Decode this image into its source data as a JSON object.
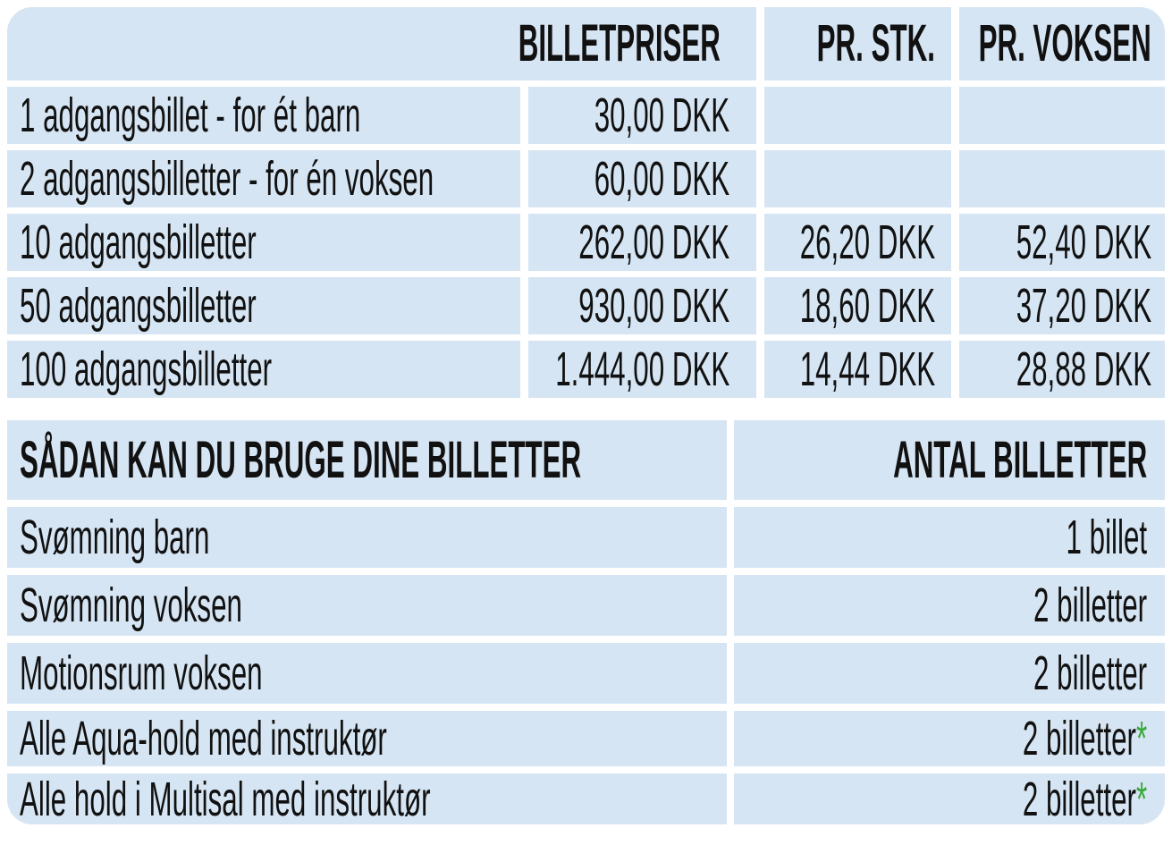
{
  "colors": {
    "cell_background": "#d6e5f3",
    "text": "#111111",
    "asterisk_green": "#3aa93c",
    "page_background": "#ffffff"
  },
  "pricing_table": {
    "header": {
      "title": "BILLETPRISER",
      "per_stk": "PR. STK.",
      "per_voksen": "PR. VOKSEN"
    },
    "rows": [
      {
        "label": "1 adgangsbillet - for ét barn",
        "price": "30,00 DKK",
        "per_stk": "",
        "per_voksen": ""
      },
      {
        "label": "2 adgangsbilletter - for én voksen",
        "price": "60,00 DKK",
        "per_stk": "",
        "per_voksen": ""
      },
      {
        "label": "10 adgangsbilletter",
        "price": "262,00 DKK",
        "per_stk": "26,20 DKK",
        "per_voksen": "52,40 DKK"
      },
      {
        "label": "50 adgangsbilletter",
        "price": "930,00 DKK",
        "per_stk": "18,60 DKK",
        "per_voksen": "37,20 DKK"
      },
      {
        "label": "100 adgangsbilletter",
        "price": "1.444,00 DKK",
        "per_stk": "14,44 DKK",
        "per_voksen": "28,88 DKK"
      }
    ]
  },
  "usage_table": {
    "header": {
      "title": "SÅDAN KAN DU BRUGE DINE BILLETTER",
      "count_title": "ANTAL BILLETTER"
    },
    "asterisk_char": "*",
    "rows": [
      {
        "label": "Svømning barn",
        "tickets": "1 billet",
        "has_asterisk": false
      },
      {
        "label": "Svømning voksen",
        "tickets": "2 billetter",
        "has_asterisk": false
      },
      {
        "label": "Motionsrum voksen",
        "tickets": "2 billetter",
        "has_asterisk": false
      },
      {
        "label": "Alle Aqua-hold med instruktør",
        "tickets": "2 billetter",
        "has_asterisk": true
      },
      {
        "label": "Alle hold i Multisal med instruktør",
        "tickets": "2 billetter",
        "has_asterisk": true
      }
    ]
  }
}
